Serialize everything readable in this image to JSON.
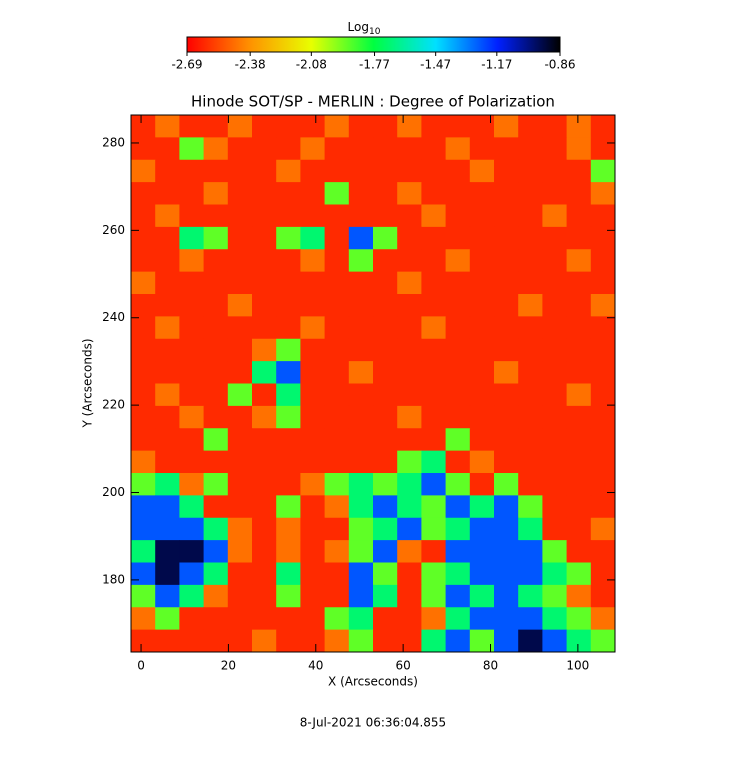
{
  "chart_data": {
    "type": "heatmap",
    "title": "Hinode SOT/SP - MERLIN : Degree of Polarization",
    "x_label": "X (Arcseconds)",
    "y_label": "Y (Arcseconds)",
    "xlim": [
      -2.3,
      108.5
    ],
    "ylim": [
      163.5,
      286.4
    ],
    "xticks": [
      0,
      20,
      40,
      60,
      80,
      100
    ],
    "yticks": [
      180,
      200,
      220,
      240,
      260,
      280
    ],
    "z": [
      [
        -2.6,
        -2.45,
        -2.6,
        -2.6,
        -2.45,
        -2.6,
        -2.6,
        -2.6,
        -2.45,
        -2.6,
        -2.6,
        -2.45,
        -2.6,
        -2.6,
        -2.6,
        -2.45,
        -2.6,
        -2.6,
        -2.45,
        -2.6
      ],
      [
        -2.6,
        -2.6,
        -1.9,
        -2.45,
        -2.6,
        -2.6,
        -2.6,
        -2.45,
        -2.6,
        -2.6,
        -2.6,
        -2.6,
        -2.6,
        -2.45,
        -2.6,
        -2.6,
        -2.6,
        -2.6,
        -2.45,
        -2.6
      ],
      [
        -2.45,
        -2.6,
        -2.6,
        -2.6,
        -2.6,
        -2.6,
        -2.45,
        -2.6,
        -2.6,
        -2.6,
        -2.6,
        -2.6,
        -2.6,
        -2.6,
        -2.45,
        -2.6,
        -2.6,
        -2.6,
        -2.6,
        -1.9
      ],
      [
        -2.6,
        -2.6,
        -2.6,
        -2.45,
        -2.6,
        -2.6,
        -2.6,
        -2.6,
        -1.9,
        -2.6,
        -2.6,
        -2.45,
        -2.6,
        -2.6,
        -2.6,
        -2.6,
        -2.6,
        -2.6,
        -2.6,
        -2.45
      ],
      [
        -2.6,
        -2.45,
        -2.6,
        -2.6,
        -2.6,
        -2.6,
        -2.6,
        -2.6,
        -2.6,
        -2.6,
        -2.6,
        -2.6,
        -2.45,
        -2.6,
        -2.6,
        -2.6,
        -2.6,
        -2.45,
        -2.6,
        -2.6
      ],
      [
        -2.6,
        -2.6,
        -1.7,
        -1.9,
        -2.6,
        -2.6,
        -1.9,
        -1.7,
        -2.6,
        -1.25,
        -1.9,
        -2.6,
        -2.6,
        -2.6,
        -2.6,
        -2.6,
        -2.6,
        -2.6,
        -2.6,
        -2.6
      ],
      [
        -2.6,
        -2.6,
        -2.45,
        -2.6,
        -2.6,
        -2.6,
        -2.6,
        -2.45,
        -2.6,
        -1.9,
        -2.6,
        -2.6,
        -2.6,
        -2.45,
        -2.6,
        -2.6,
        -2.6,
        -2.6,
        -2.45,
        -2.6
      ],
      [
        -2.45,
        -2.6,
        -2.6,
        -2.6,
        -2.6,
        -2.6,
        -2.6,
        -2.6,
        -2.6,
        -2.6,
        -2.6,
        -2.45,
        -2.6,
        -2.6,
        -2.6,
        -2.6,
        -2.6,
        -2.6,
        -2.6,
        -2.6
      ],
      [
        -2.6,
        -2.6,
        -2.6,
        -2.6,
        -2.45,
        -2.6,
        -2.6,
        -2.6,
        -2.6,
        -2.6,
        -2.6,
        -2.6,
        -2.6,
        -2.6,
        -2.6,
        -2.6,
        -2.45,
        -2.6,
        -2.6,
        -2.45
      ],
      [
        -2.6,
        -2.45,
        -2.6,
        -2.6,
        -2.6,
        -2.6,
        -2.6,
        -2.45,
        -2.6,
        -2.6,
        -2.6,
        -2.6,
        -2.45,
        -2.6,
        -2.6,
        -2.6,
        -2.6,
        -2.6,
        -2.6,
        -2.6
      ],
      [
        -2.6,
        -2.6,
        -2.6,
        -2.6,
        -2.6,
        -2.45,
        -1.9,
        -2.6,
        -2.6,
        -2.6,
        -2.6,
        -2.6,
        -2.6,
        -2.6,
        -2.6,
        -2.6,
        -2.6,
        -2.6,
        -2.6,
        -2.6
      ],
      [
        -2.6,
        -2.6,
        -2.6,
        -2.6,
        -2.6,
        -1.7,
        -1.25,
        -2.6,
        -2.6,
        -2.45,
        -2.6,
        -2.6,
        -2.6,
        -2.6,
        -2.6,
        -2.45,
        -2.6,
        -2.6,
        -2.6,
        -2.6
      ],
      [
        -2.6,
        -2.45,
        -2.6,
        -2.6,
        -1.9,
        -2.6,
        -1.7,
        -2.6,
        -2.6,
        -2.6,
        -2.6,
        -2.6,
        -2.6,
        -2.6,
        -2.6,
        -2.6,
        -2.6,
        -2.6,
        -2.45,
        -2.6
      ],
      [
        -2.6,
        -2.6,
        -2.45,
        -2.6,
        -2.6,
        -2.45,
        -1.9,
        -2.6,
        -2.6,
        -2.6,
        -2.6,
        -2.45,
        -2.6,
        -2.6,
        -2.6,
        -2.6,
        -2.6,
        -2.6,
        -2.6,
        -2.6
      ],
      [
        -2.6,
        -2.6,
        -2.6,
        -1.9,
        -2.6,
        -2.6,
        -2.6,
        -2.6,
        -2.6,
        -2.6,
        -2.6,
        -2.6,
        -2.6,
        -1.9,
        -2.6,
        -2.6,
        -2.6,
        -2.6,
        -2.6,
        -2.6
      ],
      [
        -2.45,
        -2.6,
        -2.6,
        -2.6,
        -2.6,
        -2.6,
        -2.6,
        -2.6,
        -2.6,
        -2.6,
        -2.6,
        -1.9,
        -1.7,
        -2.6,
        -2.45,
        -2.6,
        -2.6,
        -2.6,
        -2.6,
        -2.6
      ],
      [
        -1.9,
        -1.7,
        -2.45,
        -1.9,
        -2.6,
        -2.6,
        -2.6,
        -2.45,
        -1.9,
        -1.7,
        -1.9,
        -1.7,
        -1.25,
        -1.9,
        -2.6,
        -1.9,
        -2.6,
        -2.6,
        -2.6,
        -2.6
      ],
      [
        -1.25,
        -1.25,
        -1.7,
        -2.6,
        -2.6,
        -2.6,
        -1.9,
        -2.6,
        -2.45,
        -1.7,
        -1.25,
        -1.7,
        -1.9,
        -1.25,
        -1.7,
        -1.25,
        -1.9,
        -2.6,
        -2.6,
        -2.6
      ],
      [
        -1.25,
        -1.25,
        -1.25,
        -1.7,
        -2.45,
        -2.6,
        -2.45,
        -2.6,
        -2.6,
        -1.9,
        -1.7,
        -1.25,
        -1.9,
        -1.7,
        -1.25,
        -1.25,
        -1.7,
        -2.6,
        -2.6,
        -2.45
      ],
      [
        -1.7,
        -0.95,
        -0.95,
        -1.25,
        -2.45,
        -2.6,
        -2.45,
        -2.6,
        -2.45,
        -1.9,
        -1.25,
        -2.45,
        -2.6,
        -1.25,
        -1.25,
        -1.25,
        -1.25,
        -1.9,
        -2.6,
        -2.6
      ],
      [
        -1.25,
        -0.95,
        -1.25,
        -1.7,
        -2.6,
        -2.6,
        -1.7,
        -2.6,
        -2.6,
        -1.25,
        -1.9,
        -2.6,
        -1.9,
        -1.7,
        -1.25,
        -1.25,
        -1.25,
        -1.7,
        -1.9,
        -2.6
      ],
      [
        -1.9,
        -1.25,
        -1.7,
        -2.45,
        -2.6,
        -2.6,
        -1.9,
        -2.6,
        -2.6,
        -1.25,
        -1.7,
        -2.6,
        -1.9,
        -1.25,
        -1.7,
        -1.25,
        -1.7,
        -1.9,
        -2.45,
        -2.6
      ],
      [
        -2.45,
        -1.9,
        -2.6,
        -2.6,
        -2.6,
        -2.6,
        -2.6,
        -2.6,
        -1.9,
        -1.7,
        -2.6,
        -2.6,
        -2.45,
        -1.7,
        -1.25,
        -1.25,
        -1.25,
        -1.7,
        -1.9,
        -2.45
      ],
      [
        -2.6,
        -2.6,
        -2.6,
        -2.6,
        -2.6,
        -2.45,
        -2.6,
        -2.6,
        -2.45,
        -1.9,
        -2.6,
        -2.6,
        -1.7,
        -1.25,
        -1.9,
        -1.25,
        -0.95,
        -1.25,
        -1.7,
        -1.9
      ]
    ],
    "colorbar": {
      "label": "Log",
      "label_subscript": "10",
      "lim": [
        -2.69,
        -0.86
      ],
      "ticks": [
        -2.69,
        -2.38,
        -2.08,
        -1.77,
        -1.47,
        -1.17,
        -0.86
      ],
      "colors": [
        "#ff0000",
        "#ff9000",
        "#e8ff00",
        "#00ff40",
        "#00e0ff",
        "#0020ff",
        "#000000"
      ]
    },
    "timestamp": "8-Jul-2021 06:36:04.855"
  }
}
